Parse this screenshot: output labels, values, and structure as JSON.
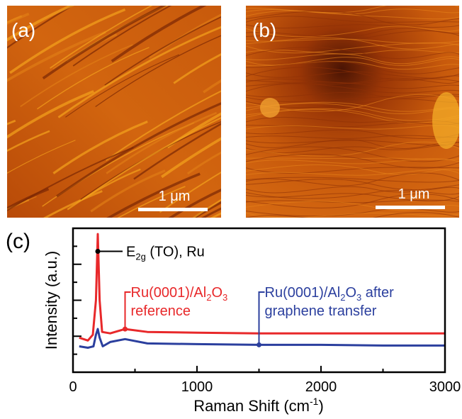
{
  "panels": [
    {
      "label": "(a)",
      "scale_bar": "1 μm"
    },
    {
      "label": "(b)",
      "scale_bar": "1 μm"
    }
  ],
  "chart_data": {
    "type": "line",
    "panel_label": "(c)",
    "x_label": [
      {
        "text": "Raman Shift (cm"
      },
      {
        "text": "-1",
        "sup": true
      },
      {
        "text": ")"
      }
    ],
    "y_label": "Intensity (a.u.)",
    "xlim": [
      0,
      3000
    ],
    "xticks": [
      0,
      1000,
      2000,
      3000
    ],
    "ylim": [
      0,
      100
    ],
    "series": [
      {
        "color": "#e8282a",
        "x": [
          50,
          120,
          160,
          185,
          200,
          215,
          235,
          300,
          420,
          600,
          1000,
          1500,
          2000,
          2500,
          3000
        ],
        "values": [
          24,
          22,
          26,
          50,
          96,
          50,
          28,
          27,
          30,
          28,
          27.5,
          27,
          27,
          27,
          27
        ]
      },
      {
        "color": "#2b3f9e",
        "x": [
          50,
          120,
          165,
          185,
          200,
          215,
          240,
          300,
          420,
          600,
          1000,
          1500,
          2000,
          2500,
          3000
        ],
        "values": [
          18,
          17,
          18,
          26,
          30,
          24,
          18,
          21,
          23,
          20,
          19.5,
          19,
          19,
          18.5,
          18.5
        ]
      }
    ],
    "annotations": [
      {
        "color": "#000000",
        "x": 200,
        "y": 84,
        "parts": [
          {
            "text": "E"
          },
          {
            "text": "2g",
            "sub": true
          },
          {
            "text": " (TO), Ru"
          }
        ]
      },
      {
        "color": "#e8282a",
        "x": 420,
        "y": 30,
        "parts": [
          {
            "text": "Ru(0001)/Al"
          },
          {
            "text": "2",
            "sub": true
          },
          {
            "text": "O"
          },
          {
            "text": "3",
            "sub": true
          }
        ],
        "line2": "reference"
      },
      {
        "color": "#2b3f9e",
        "x": 1500,
        "y": 19,
        "parts": [
          {
            "text": "Ru(0001)/Al"
          },
          {
            "text": "2",
            "sub": true
          },
          {
            "text": "O"
          },
          {
            "text": "3",
            "sub": true
          },
          {
            "text": " after"
          }
        ],
        "line2": "graphene transfer"
      }
    ]
  }
}
